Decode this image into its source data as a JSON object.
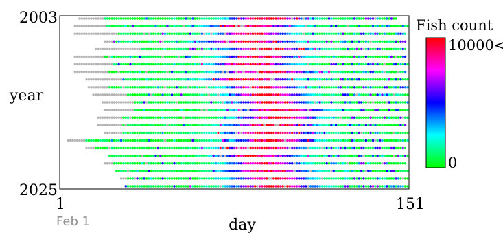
{
  "chart_data": {
    "type": "heatmap",
    "title": "",
    "xlabel": "day",
    "ylabel": "year",
    "x_range": [
      1,
      151
    ],
    "y_range": [
      2003,
      2025
    ],
    "x_ticks": [
      "1",
      "151"
    ],
    "y_ticks": [
      "2003",
      "2025"
    ],
    "x_note": "Feb 1",
    "grid": false,
    "colorbar": {
      "title": "Fish count",
      "max_label": "10000<",
      "min_label": "0",
      "min": 0,
      "max": 10000,
      "colors": [
        "#00ff00",
        "#00ffff",
        "#0000ff",
        "#ff00ff",
        "#ff0000"
      ]
    },
    "no_data_color": "#b4b4b4",
    "rows": [
      {
        "year": 2003,
        "start": 9,
        "end": 146,
        "gray_end": 20,
        "peak": 91,
        "spread": 11,
        "lead_gray": 2
      },
      {
        "year": 2004,
        "start": 7,
        "end": 151,
        "gray_end": 21,
        "peak": 83,
        "spread": 12,
        "lead_gray": 0
      },
      {
        "year": 2005,
        "start": 7,
        "end": 150,
        "gray_end": 26,
        "peak": 84,
        "spread": 10,
        "lead_gray": 20
      },
      {
        "year": 2006,
        "start": 20,
        "end": 150,
        "gray_end": 24,
        "peak": 82,
        "spread": 13,
        "lead_gray": 4
      },
      {
        "year": 2007,
        "start": 16,
        "end": 150,
        "gray_end": 36,
        "peak": 90,
        "spread": 12,
        "lead_gray": 5
      },
      {
        "year": 2008,
        "start": 7,
        "end": 150,
        "gray_end": 20,
        "peak": 88,
        "spread": 11,
        "lead_gray": 8
      },
      {
        "year": 2009,
        "start": 7,
        "end": 151,
        "gray_end": 24,
        "peak": 84,
        "spread": 11,
        "lead_gray": 12
      },
      {
        "year": 2010,
        "start": 7,
        "end": 150,
        "gray_end": 22,
        "peak": 90,
        "spread": 13,
        "lead_gray": 6
      },
      {
        "year": 2011,
        "start": 12,
        "end": 151,
        "gray_end": 28,
        "peak": 83,
        "spread": 12,
        "lead_gray": 10
      },
      {
        "year": 2012,
        "start": 13,
        "end": 151,
        "gray_end": 22,
        "peak": 88,
        "spread": 10,
        "lead_gray": 4
      },
      {
        "year": 2013,
        "start": 15,
        "end": 151,
        "gray_end": 30,
        "peak": 90,
        "spread": 11,
        "lead_gray": 2
      },
      {
        "year": 2014,
        "start": 19,
        "end": 151,
        "gray_end": 33,
        "peak": 92,
        "spread": 10,
        "lead_gray": 4
      },
      {
        "year": 2015,
        "start": 20,
        "end": 151,
        "gray_end": 33,
        "peak": 97,
        "spread": 12,
        "lead_gray": 4
      },
      {
        "year": 2016,
        "start": 17,
        "end": 151,
        "gray_end": 28,
        "peak": 95,
        "spread": 11,
        "lead_gray": 3
      },
      {
        "year": 2017,
        "start": 17,
        "end": 150,
        "gray_end": 28,
        "peak": 92,
        "spread": 12,
        "lead_gray": 2
      },
      {
        "year": 2018,
        "start": 20,
        "end": 151,
        "gray_end": 28,
        "peak": 91,
        "spread": 13,
        "lead_gray": 4
      },
      {
        "year": 2019,
        "start": 4,
        "end": 151,
        "gray_end": 12,
        "peak": 93,
        "spread": 11,
        "lead_gray": 7
      },
      {
        "year": 2020,
        "start": 12,
        "end": 150,
        "gray_end": 16,
        "peak": 88,
        "spread": 12,
        "lead_gray": 6
      },
      {
        "year": 2021,
        "start": 22,
        "end": 151,
        "gray_end": 22,
        "peak": 86,
        "spread": 11,
        "lead_gray": 0
      },
      {
        "year": 2022,
        "start": 20,
        "end": 150,
        "gray_end": 24,
        "peak": 89,
        "spread": 10,
        "lead_gray": 6
      },
      {
        "year": 2023,
        "start": 25,
        "end": 151,
        "gray_end": 25,
        "peak": 90,
        "spread": 12,
        "lead_gray": 2
      },
      {
        "year": 2024,
        "start": 27,
        "end": 151,
        "gray_end": 30,
        "peak": 92,
        "spread": 11,
        "lead_gray": 0
      },
      {
        "year": 2025,
        "start": 29,
        "end": 151,
        "gray_end": 29,
        "peak": 93,
        "spread": 12,
        "lead_gray": 0
      }
    ]
  }
}
